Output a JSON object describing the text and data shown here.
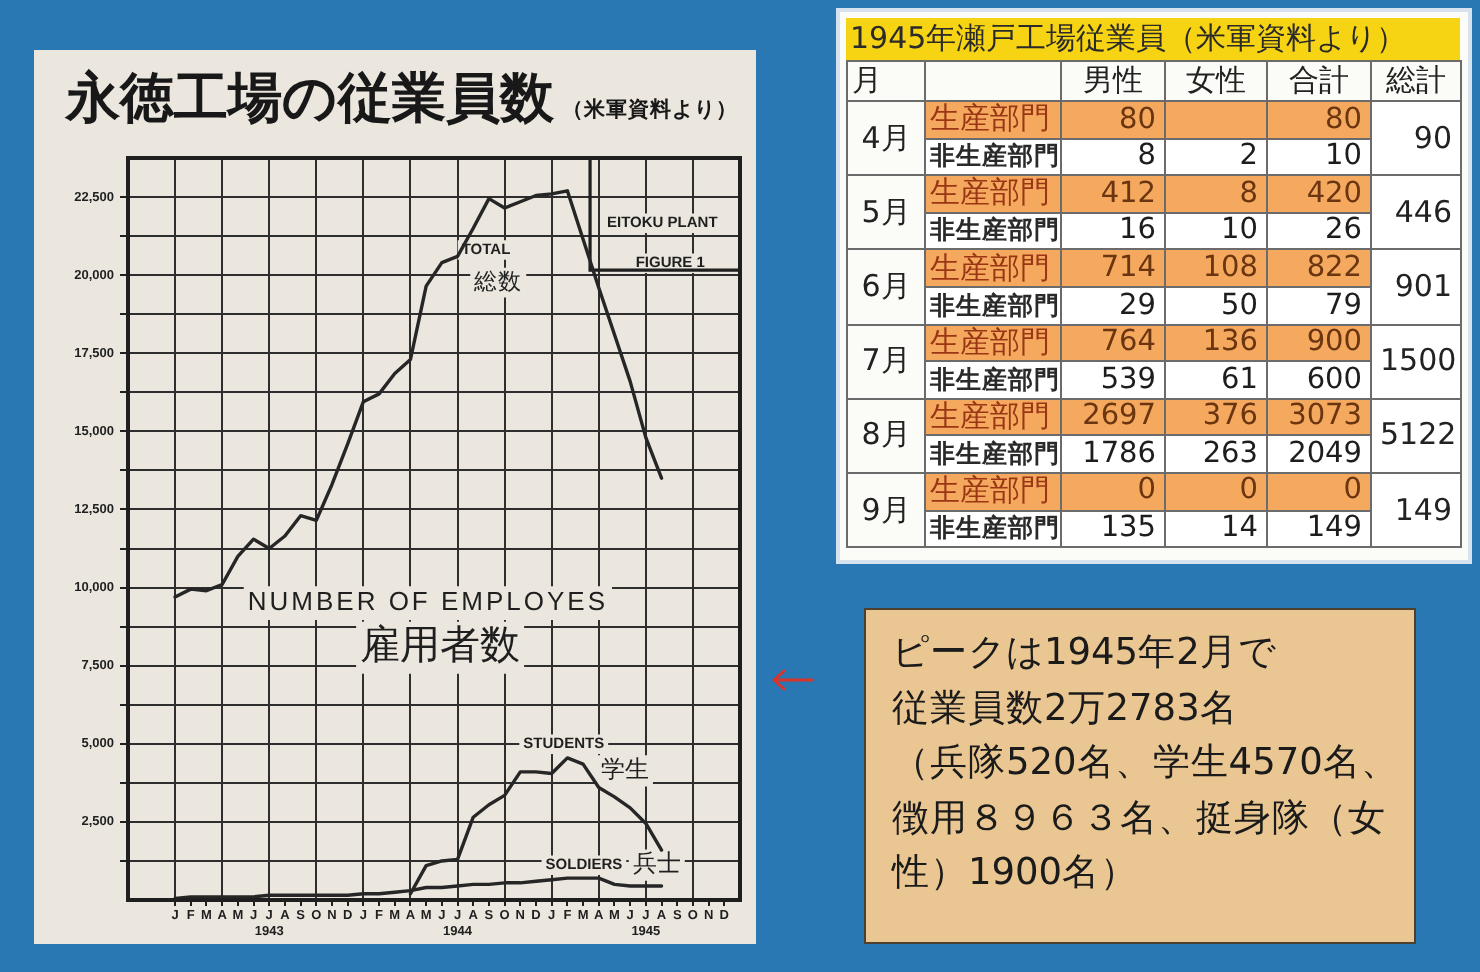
{
  "chart_data": [
    {
      "type": "line",
      "title": "永徳工場の従業員数",
      "subtitle": "（米軍資料より）",
      "x": [
        "1943-01",
        "1943-02",
        "1943-03",
        "1943-04",
        "1943-05",
        "1943-06",
        "1943-07",
        "1943-08",
        "1943-09",
        "1943-10",
        "1943-11",
        "1943-12",
        "1944-01",
        "1944-02",
        "1944-03",
        "1944-04",
        "1944-05",
        "1944-06",
        "1944-07",
        "1944-08",
        "1944-09",
        "1944-10",
        "1944-11",
        "1944-12",
        "1945-01",
        "1945-02",
        "1945-03",
        "1945-04",
        "1945-05",
        "1945-06",
        "1945-07",
        "1945-08"
      ],
      "series": [
        {
          "name": "TOTAL\n総数",
          "color": "#262626",
          "values": [
            9700,
            9950,
            9900,
            10100,
            11000,
            11550,
            11250,
            11650,
            12300,
            12150,
            13300,
            14600,
            15950,
            16200,
            16850,
            17300,
            19650,
            20400,
            20600,
            21500,
            22450,
            22150,
            22350,
            22550,
            22600,
            22700,
            21150,
            19600,
            18100,
            16600,
            14800,
            13500
          ]
        },
        {
          "name": "STUDENTS\n学生",
          "color": "#262626",
          "values": [
            null,
            null,
            null,
            null,
            null,
            null,
            null,
            null,
            null,
            null,
            null,
            null,
            null,
            null,
            null,
            200,
            1100,
            1250,
            1300,
            2650,
            3050,
            3350,
            4100,
            4100,
            4050,
            4550,
            4350,
            3600,
            3300,
            2950,
            2450,
            1600
          ]
        },
        {
          "name": "SOLDIERS\n兵士",
          "color": "#262626",
          "values": [
            50,
            100,
            100,
            100,
            100,
            100,
            150,
            150,
            150,
            150,
            150,
            150,
            200,
            200,
            250,
            300,
            400,
            400,
            450,
            500,
            500,
            550,
            550,
            600,
            650,
            700,
            700,
            700,
            500,
            450,
            450,
            450
          ]
        }
      ],
      "xlim": [
        "1942-10",
        "1946-01"
      ],
      "xticks": [
        {
          "value": "1943-01",
          "label": "J"
        },
        {
          "value": "1943-02",
          "label": "F"
        },
        {
          "value": "1943-03",
          "label": "M"
        },
        {
          "value": "1943-04",
          "label": "A"
        },
        {
          "value": "1943-05",
          "label": "M"
        },
        {
          "value": "1943-06",
          "label": "J"
        },
        {
          "value": "1943-07",
          "label": "J\n1943"
        },
        {
          "value": "1943-08",
          "label": "A"
        },
        {
          "value": "1943-09",
          "label": "S"
        },
        {
          "value": "1943-10",
          "label": "O"
        },
        {
          "value": "1943-11",
          "label": "N"
        },
        {
          "value": "1943-12",
          "label": "D"
        },
        {
          "value": "1944-01",
          "label": "J"
        },
        {
          "value": "1944-02",
          "label": "F"
        },
        {
          "value": "1944-03",
          "label": "M"
        },
        {
          "value": "1944-04",
          "label": "A"
        },
        {
          "value": "1944-05",
          "label": "M"
        },
        {
          "value": "1944-06",
          "label": "J"
        },
        {
          "value": "1944-07",
          "label": "J\n1944"
        },
        {
          "value": "1944-08",
          "label": "A"
        },
        {
          "value": "1944-09",
          "label": "S"
        },
        {
          "value": "1944-10",
          "label": "O"
        },
        {
          "value": "1944-11",
          "label": "N"
        },
        {
          "value": "1944-12",
          "label": "D"
        },
        {
          "value": "1945-01",
          "label": "J"
        },
        {
          "value": "1945-02",
          "label": "F"
        },
        {
          "value": "1945-03",
          "label": "M"
        },
        {
          "value": "1945-04",
          "label": "A"
        },
        {
          "value": "1945-05",
          "label": "M"
        },
        {
          "value": "1945-06",
          "label": "J"
        },
        {
          "value": "1945-07",
          "label": "J\n1945"
        },
        {
          "value": "1945-08",
          "label": "A"
        },
        {
          "value": "1945-09",
          "label": "S"
        },
        {
          "value": "1945-10",
          "label": "O"
        },
        {
          "value": "1945-11",
          "label": "N"
        },
        {
          "value": "1945-12",
          "label": "D"
        }
      ],
      "ylim": [
        0,
        23750
      ],
      "yticks": [
        {
          "value": 1250,
          "label": null
        },
        {
          "value": 2500,
          "label": "2,500"
        },
        {
          "value": 3750,
          "label": null
        },
        {
          "value": 5000,
          "label": "5,000"
        },
        {
          "value": 6250,
          "label": null
        },
        {
          "value": 7500,
          "label": "7,500"
        },
        {
          "value": 8750,
          "label": null
        },
        {
          "value": 10000,
          "label": "10,000"
        },
        {
          "value": 11250,
          "label": null
        },
        {
          "value": 12500,
          "label": "12,500"
        },
        {
          "value": 13750,
          "label": null
        },
        {
          "value": 15000,
          "label": "15,000"
        },
        {
          "value": 16250,
          "label": null
        },
        {
          "value": 17500,
          "label": "17,500"
        },
        {
          "value": 18750,
          "label": null
        },
        {
          "value": 20000,
          "label": "20,000"
        },
        {
          "value": 21250,
          "label": null
        },
        {
          "value": 22500,
          "label": "22,500"
        }
      ],
      "grid": true,
      "marker": "none",
      "annotations": [
        "NUMBER OF EMPLOYES",
        "雇用者数",
        "EITOKU PLANT",
        "FIGURE 1"
      ]
    },
    {
      "type": "heatmap",
      "title": "1945年瀬戸工場従業員（米軍資料より）",
      "ylabel": "月",
      "categories": [
        "男性",
        "女性",
        "合計",
        "総計"
      ],
      "y_categories": [
        "生産部門",
        "非生産部門",
        "生産部門",
        "非生産部門",
        "生産部門",
        "非生産部門",
        "生産部門",
        "非生産部門",
        "生産部門",
        "非生産部門",
        "生産部門",
        "非生産部門"
      ],
      "y2_categories": [
        "4月",
        null,
        "5月",
        null,
        "6月",
        null,
        "7月",
        null,
        "8月",
        null,
        "9月",
        null
      ],
      "cells": [
        [
          80,
          null,
          80,
          90
        ],
        [
          8,
          2,
          10,
          null
        ],
        [
          412,
          8,
          420,
          446
        ],
        [
          16,
          10,
          26,
          null
        ],
        [
          714,
          108,
          822,
          901
        ],
        [
          29,
          50,
          79,
          null
        ],
        [
          764,
          136,
          900,
          1500
        ],
        [
          539,
          61,
          600,
          null
        ],
        [
          2697,
          376,
          3073,
          5122
        ],
        [
          1786,
          263,
          2049,
          null
        ],
        [
          0,
          0,
          0,
          149
        ],
        [
          135,
          14,
          149,
          null
        ]
      ],
      "colors": [
        "#f5a95f",
        "#ffffff",
        "#f5a95f",
        "#ffffff",
        "#f5a95f",
        "#ffffff",
        "#f5a95f",
        "#ffffff",
        "#f5a95f",
        "#ffffff",
        "#f5a95f",
        "#ffffff"
      ],
      "data_labels": true
    },
    {
      "type": "other",
      "annotations": [
        "ピークは1945年2月で",
        "従業員数2万2783名",
        "（兵隊520名、学生4570名、",
        "徴用８９６３名、挺身隊（女",
        "性）1900名）"
      ]
    }
  ]
}
